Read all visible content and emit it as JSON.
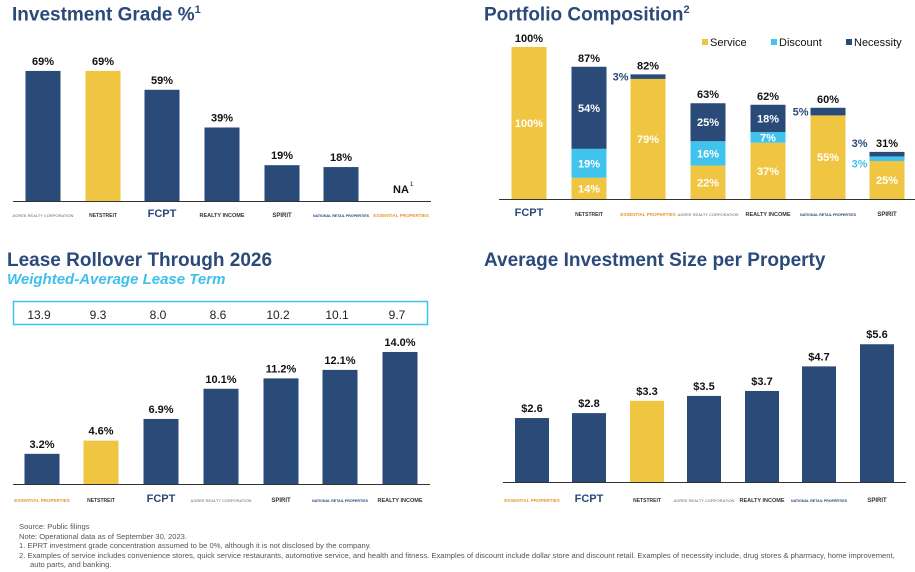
{
  "colors": {
    "navy": "#2a4a78",
    "yellow": "#f0c541",
    "cyan": "#40c4ee",
    "title": "#2b4a7a"
  },
  "logos": {
    "Agree Realty": "AGREE REALTY CORPORATION",
    "NETSTREIT": "NETSTREIT",
    "FCPT": "FCPT",
    "Realty Income": "REALTY INCOME",
    "Spirit Realty": "SPIRIT",
    "National Retail Properties": "NATIONAL RETAIL PROPERTIES",
    "Essential Properties": "ESSENTIAL PROPERTIES"
  },
  "chart_data": [
    {
      "type": "bar",
      "title": "Investment Grade %",
      "title_footnote": "1",
      "categories": [
        "Agree Realty",
        "NETSTREIT",
        "FCPT",
        "Realty Income",
        "Spirit Realty",
        "National Retail Properties",
        "Essential Properties"
      ],
      "values": [
        69,
        69,
        59,
        39,
        19,
        18,
        null
      ],
      "data_labels": [
        "69%",
        "69%",
        "59%",
        "39%",
        "19%",
        "18%",
        "NA"
      ],
      "na_footnote": "1",
      "highlight": "NETSTREIT",
      "ylim": [
        0,
        100
      ],
      "grid": false
    },
    {
      "type": "bar",
      "stacked": true,
      "title": "Portfolio Composition",
      "title_footnote": "2",
      "categories": [
        "FCPT",
        "NETSTREIT",
        "Essential Properties",
        "Agree Realty",
        "Realty Income",
        "National Retail Properties",
        "Spirit Realty"
      ],
      "series": [
        {
          "name": "Service",
          "color": "#f0c541",
          "values": [
            100,
            14,
            79,
            22,
            37,
            55,
            25
          ]
        },
        {
          "name": "Discount",
          "color": "#40c4ee",
          "values": [
            0,
            19,
            0,
            16,
            7,
            0,
            3
          ]
        },
        {
          "name": "Necessity",
          "color": "#2a4a78",
          "values": [
            0,
            54,
            3,
            25,
            18,
            5,
            3
          ]
        }
      ],
      "totals": [
        100,
        87,
        82,
        63,
        62,
        60,
        31
      ],
      "legend": "top-right",
      "ylim": [
        0,
        100
      ],
      "grid": false
    },
    {
      "type": "bar",
      "title": "Lease Rollover Through 2026",
      "subtitle": "Weighted-Average Lease Term",
      "categories": [
        "Essential Properties",
        "NETSTREIT",
        "FCPT",
        "Agree Realty",
        "Spirit Realty",
        "National Retail Properties",
        "Realty Income"
      ],
      "values": [
        3.2,
        4.6,
        6.9,
        10.1,
        11.2,
        12.1,
        14.0
      ],
      "data_labels": [
        "3.2%",
        "4.6%",
        "6.9%",
        "10.1%",
        "11.2%",
        "12.1%",
        "14.0%"
      ],
      "walt": [
        "13.9",
        "9.3",
        "8.0",
        "8.6",
        "10.2",
        "10.1",
        "9.7"
      ],
      "highlight": "NETSTREIT",
      "ylim": [
        0,
        15
      ],
      "grid": false
    },
    {
      "type": "bar",
      "title": "Average Investment Size per Property",
      "categories": [
        "Essential Properties",
        "FCPT",
        "NETSTREIT",
        "Agree Realty",
        "Realty Income",
        "National Retail Properties",
        "Spirit Realty"
      ],
      "values": [
        2.6,
        2.8,
        3.3,
        3.5,
        3.7,
        4.7,
        5.6
      ],
      "data_labels": [
        "$2.6",
        "$2.8",
        "$3.3",
        "$3.5",
        "$3.7",
        "$4.7",
        "$5.6"
      ],
      "highlight": "NETSTREIT",
      "ylim": [
        0,
        6
      ],
      "grid": false
    }
  ],
  "notes": {
    "source": "Source: Public filings",
    "note": "Note: Operational data as of September 30, 2023.",
    "fn1": "1.  EPRT investment grade concentration assumed to be 0%, although it is not disclosed by the company.",
    "fn2": "2.  Examples of service includes convenience stores, quick service restaurants, automotive service, and health and fitness. Examples of discount include dollar store and discount retail. Examples of necessity include, drug stores & pharmacy, home improvement, auto parts, and banking."
  }
}
